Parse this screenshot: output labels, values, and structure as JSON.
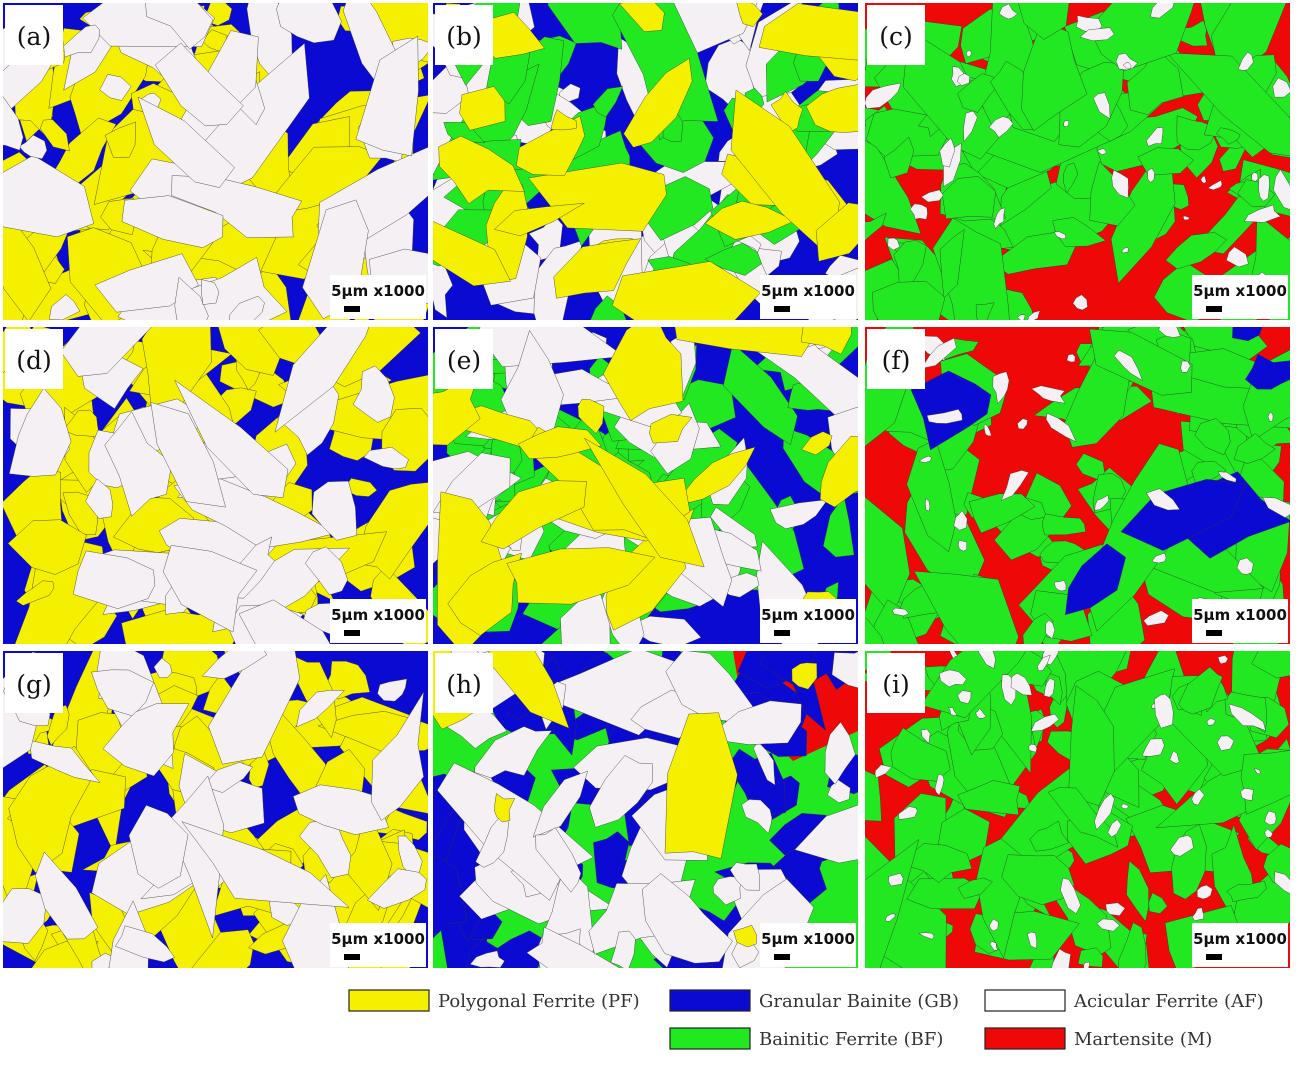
{
  "panels": [
    {
      "label": "(a)",
      "scale": "5μm x1000"
    },
    {
      "label": "(b)",
      "scale": "5μm x1000"
    },
    {
      "label": "(c)",
      "scale": "5μm x1000"
    },
    {
      "label": "(d)",
      "scale": "5μm x1000"
    },
    {
      "label": "(e)",
      "scale": "5μm x1000"
    },
    {
      "label": "(f)",
      "scale": "5μm x1000"
    },
    {
      "label": "(g)",
      "scale": "5μm x1000"
    },
    {
      "label": "(h)",
      "scale": "5μm x1000"
    },
    {
      "label": "(i)",
      "scale": "5μm x1000"
    }
  ],
  "legend": [
    {
      "label": "Polygonal Ferrite (PF)"
    },
    {
      "label": "Granular Bainite (GB)"
    },
    {
      "label": "Acicular Ferrite (AF)"
    },
    {
      "label": "Bainitic Ferrite (BF)"
    },
    {
      "label": "Martensite (M)"
    }
  ]
}
